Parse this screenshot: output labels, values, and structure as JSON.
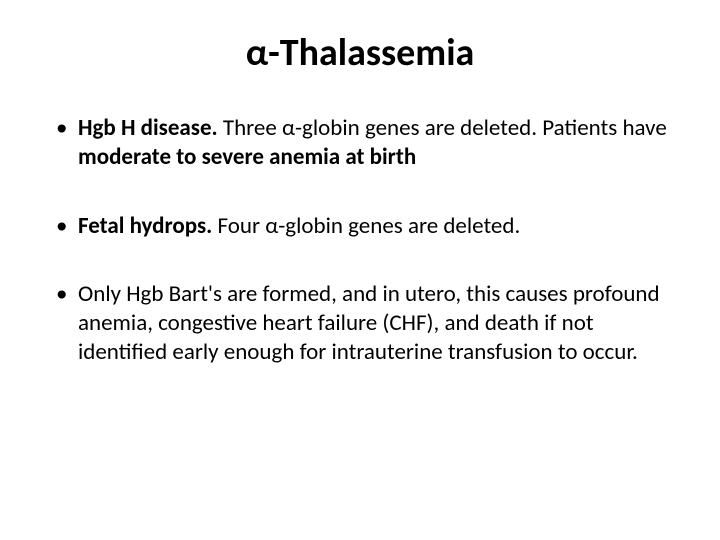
{
  "slide": {
    "title": "α-Thalassemia",
    "title_fontsize": 38,
    "body_fontsize": 23,
    "text_color": "#000000",
    "background_color": "#ffffff",
    "bullets": [
      {
        "runs": [
          {
            "text": "Hgb H disease. ",
            "bold": true
          },
          {
            "text": "Three α-globin genes are deleted. Patients have ",
            "bold": false
          },
          {
            "text": "moderate to severe anemia at birth",
            "bold": true
          }
        ]
      },
      {
        "runs": [
          {
            "text": "Fetal hydrops. ",
            "bold": true
          },
          {
            "text": "Four α-globin genes are deleted.",
            "bold": false
          }
        ]
      },
      {
        "runs": [
          {
            "text": "Only Hgb Bart's are formed, and in utero, this causes profound anemia, congestive heart failure (CHF), and death if not identified early enough for intrauterine transfusion to occur.",
            "bold": false
          }
        ]
      }
    ]
  }
}
